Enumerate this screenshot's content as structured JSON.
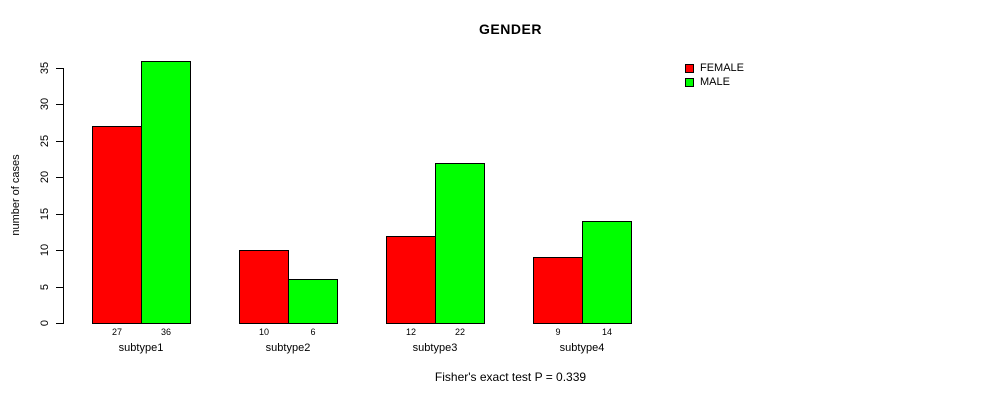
{
  "chart_data": {
    "type": "bar",
    "title": "GENDER",
    "ylabel": "number of cases",
    "xlabel": "",
    "categories": [
      "subtype1",
      "subtype2",
      "subtype3",
      "subtype4"
    ],
    "series": [
      {
        "name": "FEMALE",
        "color": "#ff0000",
        "values": [
          27,
          10,
          12,
          9
        ]
      },
      {
        "name": "MALE",
        "color": "#00ff00",
        "values": [
          36,
          6,
          22,
          14
        ]
      }
    ],
    "bar_value_labels": [
      [
        27,
        36
      ],
      [
        10,
        6
      ],
      [
        12,
        22
      ],
      [
        9,
        14
      ]
    ],
    "yticks": [
      0,
      5,
      10,
      15,
      20,
      25,
      30,
      35
    ],
    "ylim": [
      0,
      35
    ],
    "grid": false,
    "legend_position": "right-outside-top",
    "annotation": "Fisher's exact test P = 0.339",
    "colors": {
      "background": "#ffffff",
      "axis": "#000000",
      "text": "#000000",
      "female": "#ff0000",
      "male": "#00ff00"
    }
  }
}
